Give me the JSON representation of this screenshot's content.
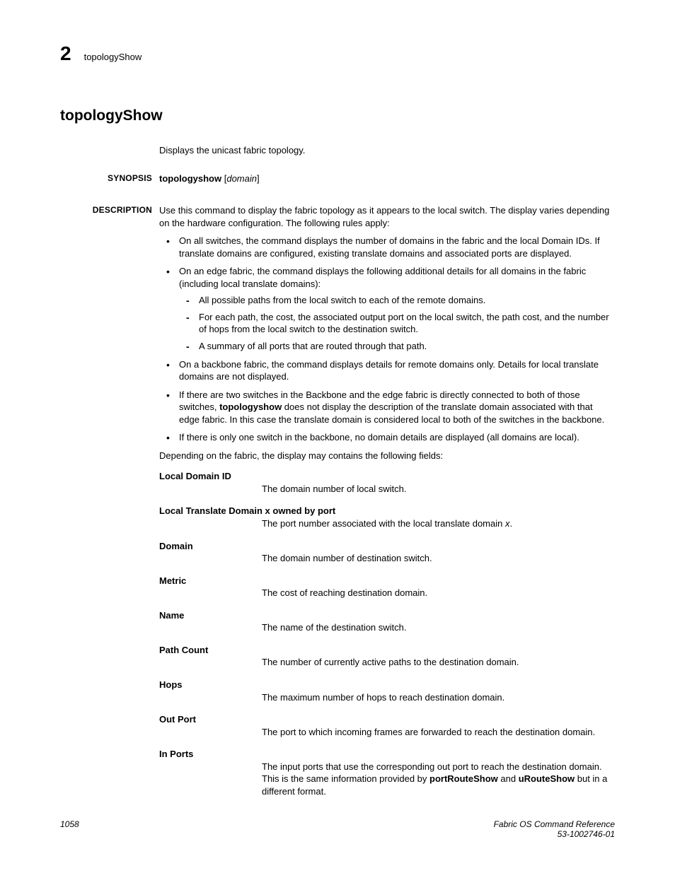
{
  "header": {
    "chapter_number": "2",
    "command_name": "topologyShow"
  },
  "title": "topologyShow",
  "intro": "Displays the unicast fabric topology.",
  "synopsis": {
    "label": "SYNOPSIS",
    "command": "topologyshow",
    "arg_open": " [",
    "arg": "domain",
    "arg_close": "]"
  },
  "description": {
    "label": "DESCRIPTION",
    "lead": "Use this command to display the fabric topology as it appears to the local switch. The display varies depending on the hardware configuration. The following rules apply:",
    "bullets": [
      {
        "text": "On all switches, the command displays the number of domains in the fabric and the local Domain IDs. If translate domains are configured, existing translate domains and associated ports are displayed."
      },
      {
        "text": "On an edge fabric, the command displays the following additional details for all domains in the fabric (including local translate domains):",
        "sub": [
          "All possible paths from the local switch to each of the remote domains.",
          "For each path, the cost, the associated output port on the local switch, the path cost, and the number of hops from the local switch to the destination switch.",
          "A summary of all ports that are routed through that path."
        ]
      },
      {
        "text": "On a backbone fabric, the command displays details for remote domains only. Details for local translate domains are not displayed."
      },
      {
        "text_pre": "If there are two switches in the Backbone and the edge fabric is directly connected to both of those switches, ",
        "bold": "topologyshow",
        "text_post": " does not display the description of the translate domain associated with that edge fabric. In this case the translate domain is considered local to both of the switches in the backbone."
      },
      {
        "text": "If there is only one switch in the backbone, no domain details are displayed (all domains are local)."
      }
    ],
    "after_bullets": "Depending on the fabric, the display may contains the following fields:",
    "fields": [
      {
        "term": "Local Domain ID",
        "desc": "The domain number of local switch."
      },
      {
        "term": "Local Translate Domain x owned by port",
        "desc_pre": "The port number associated with the local translate domain ",
        "desc_italic": "x",
        "desc_post": "."
      },
      {
        "term": "Domain",
        "desc": "The domain number of destination switch."
      },
      {
        "term": "Metric",
        "desc": "The cost of reaching destination domain."
      },
      {
        "term": "Name",
        "desc": "The name of the destination switch."
      },
      {
        "term": "Path Count",
        "desc": "The number of currently active paths to the destination domain."
      },
      {
        "term": "Hops",
        "desc": "The maximum number of hops to reach destination domain."
      },
      {
        "term": "Out Port",
        "desc": "The port to which incoming frames are forwarded to reach the destination domain."
      },
      {
        "term": "In Ports",
        "desc_pre": "The input ports that use the corresponding out port to reach the destination domain. This is the same information provided by ",
        "bold1": "portRouteShow",
        "mid": " and ",
        "bold2": "uRouteShow",
        "desc_post": " but in a different format."
      }
    ]
  },
  "footer": {
    "page_number": "1058",
    "doc_title": "Fabric OS Command Reference",
    "doc_id": "53-1002746-01"
  }
}
